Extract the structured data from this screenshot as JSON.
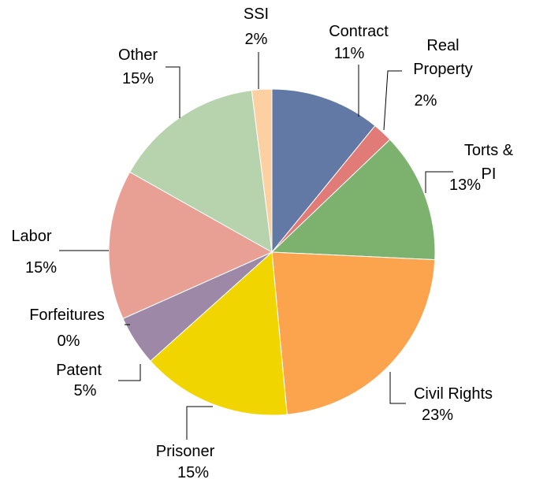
{
  "chart_data": {
    "type": "pie",
    "categories": [
      "Contract",
      "Real Property",
      "Torts & PI",
      "Civil Rights",
      "Prisoner",
      "Patent",
      "Forfeitures",
      "Labor",
      "Other",
      "SSI"
    ],
    "values": [
      11,
      2,
      13,
      23,
      15,
      5,
      0,
      15,
      15,
      2
    ],
    "value_labels": [
      "11%",
      "2%",
      "13%",
      "23%",
      "15%",
      "5%",
      "0%",
      "15%",
      "15%",
      "2%"
    ],
    "colors": [
      "#6279a5",
      "#e07b78",
      "#7db26e",
      "#fba44d",
      "#f0d500",
      "#9e88a8",
      "#7aa3d4",
      "#e8a095",
      "#b6d3ae",
      "#fdd0a2"
    ]
  }
}
